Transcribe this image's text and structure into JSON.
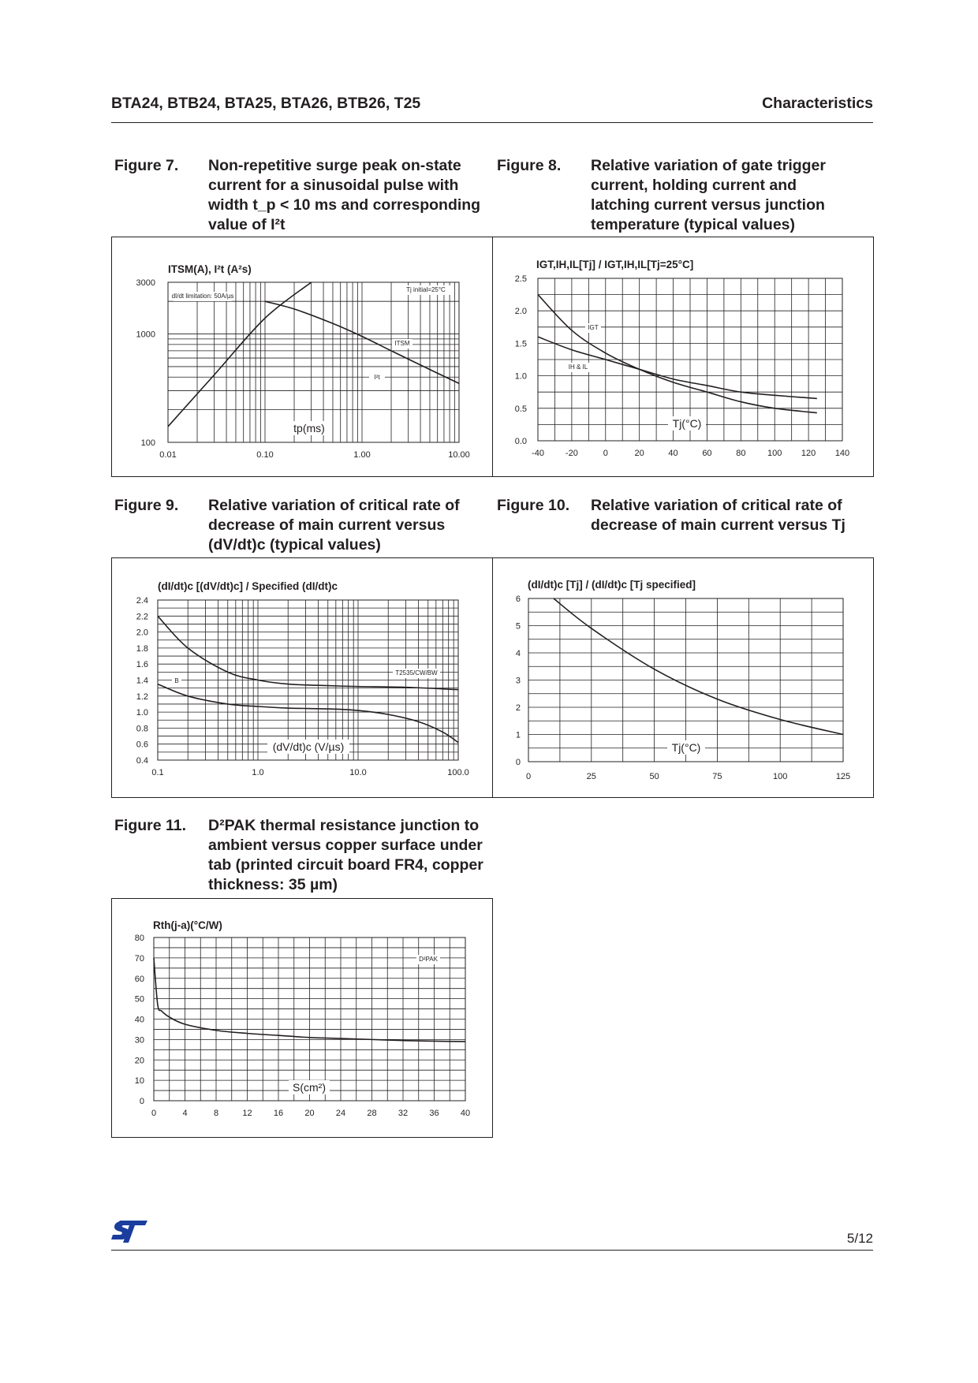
{
  "header": {
    "title": "BTA24, BTB24, BTA25, BTA26, BTB26, T25",
    "section": "Characteristics"
  },
  "footer": {
    "page": "5/12"
  },
  "figures": {
    "fig7": {
      "num": "Figure 7.",
      "lines": [
        "Non-repetitive surge peak on-state",
        "current for a sinusoidal pulse with",
        "width t_p < 10 ms and corresponding",
        "value of I²t"
      ]
    },
    "fig8": {
      "num": "Figure 8.",
      "lines": [
        "Relative variation of gate trigger",
        "current, holding current and",
        "latching current versus junction",
        "temperature (typical values)"
      ]
    },
    "fig9": {
      "num": "Figure 9.",
      "lines": [
        "Relative variation of critical rate of",
        "decrease of main current versus",
        "(dV/dt)c (typical values)"
      ]
    },
    "fig10": {
      "num": "Figure 10.",
      "lines": [
        "Relative variation of critical rate of",
        "decrease of main current versus Tj"
      ]
    },
    "fig11": {
      "num": "Figure 11.",
      "lines": [
        "D²PAK thermal resistance junction to",
        "ambient versus copper surface under",
        "tab (printed circuit board FR4, copper",
        "thickness: 35 µm)"
      ]
    }
  },
  "chart_data": [
    {
      "id": "fig7",
      "type": "line",
      "xscale": "log",
      "yscale": "log",
      "ylabel": "ITSM(A), I²t (A²s)",
      "xlabel": "tp(ms)",
      "xlim": [
        0.01,
        10
      ],
      "ylim": [
        100,
        3000
      ],
      "xticks": [
        "0.01",
        "0.10",
        "1.00",
        "10.00"
      ],
      "yticks": [
        "100",
        "1000",
        "3000"
      ],
      "annotations": [
        "dI/dt limitation: 50A/µs",
        "Tj initial=25°C",
        "ITSM",
        "I²t"
      ],
      "series": [
        {
          "name": "ITSM",
          "x": [
            0.1,
            0.2,
            0.5,
            1.0,
            2.0,
            5.0,
            10.0
          ],
          "y": [
            2000,
            1700,
            1250,
            950,
            700,
            470,
            350
          ]
        },
        {
          "name": "I²t",
          "x": [
            0.01,
            0.03,
            0.1,
            0.3
          ],
          "y": [
            140,
            420,
            1400,
            3000
          ]
        }
      ]
    },
    {
      "id": "fig8",
      "type": "line",
      "ylabel": "IGT,IH,IL[Tj] / IGT,IH,IL[Tj=25°C]",
      "xlabel": "Tj(°C)",
      "xlim": [
        -40,
        140
      ],
      "ylim": [
        0,
        2.5
      ],
      "xticks": [
        "-40",
        "-20",
        "0",
        "20",
        "40",
        "60",
        "80",
        "100",
        "120",
        "140"
      ],
      "yticks": [
        "0.0",
        "0.5",
        "1.0",
        "1.5",
        "2.0",
        "2.5"
      ],
      "series": [
        {
          "name": "IGT",
          "x": [
            -40,
            -20,
            0,
            20,
            40,
            60,
            80,
            100,
            125
          ],
          "y": [
            2.25,
            1.7,
            1.35,
            1.1,
            0.9,
            0.75,
            0.6,
            0.5,
            0.43
          ]
        },
        {
          "name": "IH & IL",
          "x": [
            -40,
            -20,
            0,
            20,
            40,
            60,
            80,
            100,
            125
          ],
          "y": [
            1.6,
            1.4,
            1.25,
            1.1,
            0.95,
            0.85,
            0.75,
            0.7,
            0.65
          ]
        }
      ]
    },
    {
      "id": "fig9",
      "type": "line",
      "xscale": "log",
      "ylabel": "(dI/dt)c [(dV/dt)c] / Specified (dI/dt)c",
      "xlabel": "(dV/dt)c (V/µs)",
      "xlim": [
        0.1,
        100
      ],
      "ylim": [
        0.4,
        2.4
      ],
      "xticks": [
        "0.1",
        "1.0",
        "10.0",
        "100.0"
      ],
      "yticks": [
        "0.4",
        "0.6",
        "0.8",
        "1.0",
        "1.2",
        "1.4",
        "1.6",
        "1.8",
        "2.0",
        "2.2",
        "2.4"
      ],
      "series": [
        {
          "name": "T2535/CW/BW",
          "x": [
            0.1,
            0.2,
            0.5,
            1,
            2,
            5,
            10,
            30,
            100
          ],
          "y": [
            2.2,
            1.8,
            1.5,
            1.4,
            1.35,
            1.33,
            1.32,
            1.31,
            1.28
          ]
        },
        {
          "name": "B",
          "x": [
            0.1,
            0.2,
            0.5,
            1,
            2,
            5,
            10,
            20,
            40,
            70,
            100
          ],
          "y": [
            1.35,
            1.2,
            1.1,
            1.07,
            1.05,
            1.04,
            1.02,
            0.97,
            0.88,
            0.75,
            0.62
          ]
        }
      ]
    },
    {
      "id": "fig10",
      "type": "line",
      "ylabel": "(dI/dt)c [Tj] / (dI/dt)c [Tj specified]",
      "xlabel": "Tj(°C)",
      "xlim": [
        0,
        125
      ],
      "ylim": [
        0,
        6
      ],
      "xticks": [
        "0",
        "25",
        "50",
        "75",
        "100",
        "125"
      ],
      "yticks": [
        "0",
        "1",
        "2",
        "3",
        "4",
        "5",
        "6"
      ],
      "series": [
        {
          "name": "",
          "x": [
            10,
            25,
            50,
            75,
            100,
            125
          ],
          "y": [
            6.0,
            4.9,
            3.4,
            2.3,
            1.55,
            1.0
          ]
        }
      ]
    },
    {
      "id": "fig11",
      "type": "line",
      "ylabel": "Rth(j-a)(°C/W)",
      "xlabel": "S(cm²)",
      "xlim": [
        0,
        40
      ],
      "ylim": [
        0,
        80
      ],
      "xticks": [
        "0",
        "4",
        "8",
        "12",
        "16",
        "20",
        "24",
        "28",
        "32",
        "36",
        "40"
      ],
      "yticks": [
        "0",
        "10",
        "20",
        "30",
        "40",
        "50",
        "60",
        "70",
        "80"
      ],
      "annotations": [
        "D²PAK"
      ],
      "series": [
        {
          "name": "D²PAK",
          "x": [
            0,
            0.5,
            1,
            2,
            4,
            8,
            12,
            16,
            20,
            24,
            28,
            32,
            36,
            40
          ],
          "y": [
            70,
            47,
            44,
            41,
            37.5,
            34.5,
            33,
            32,
            31,
            30.5,
            30,
            29.5,
            29.2,
            29
          ]
        }
      ]
    }
  ]
}
